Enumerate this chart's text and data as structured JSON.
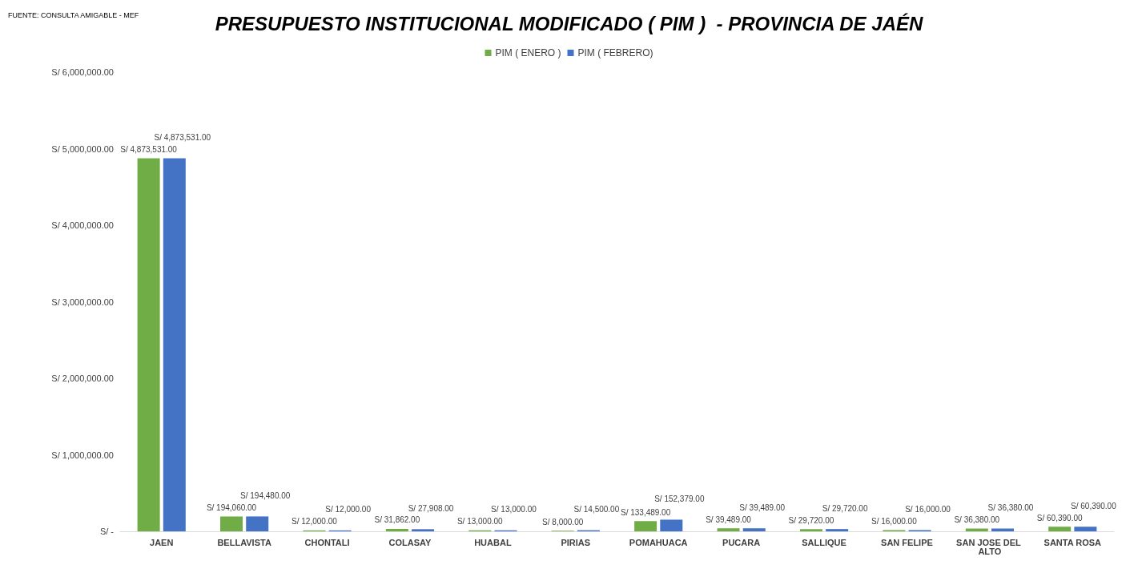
{
  "chart_data": {
    "type": "bar",
    "title": "PRESUPUESTO INSTITUCIONAL MODIFICADO ( PIM )  - PROVINCIA DE JAÉN",
    "annotations": [
      "FUENTE: CONSULTA AMIGABLE - MEF"
    ],
    "categories": [
      "JAEN",
      "BELLAVISTA",
      "CHONTALI",
      "COLASAY",
      "HUABAL",
      "PIRIAS",
      "POMAHUACA",
      "PUCARA",
      "SALLIQUE",
      "SAN FELIPE",
      "SAN JOSE DEL ALTO",
      "SANTA ROSA"
    ],
    "series": [
      {
        "name": "PIM ( ENERO )",
        "color": "#70ad47",
        "values": [
          4873531,
          194060,
          12000,
          31862,
          13000,
          8000,
          133489,
          39489,
          29720,
          16000,
          36380,
          60390
        ],
        "value_labels": [
          "S/ 4,873,531.00",
          "S/ 194,060.00",
          "S/ 12,000.00",
          "S/ 31,862.00",
          "S/ 13,000.00",
          "S/ 8,000.00",
          "S/ 133,489.00",
          "S/ 39,489.00",
          "S/ 29,720.00",
          "S/ 16,000.00",
          "S/ 36,380.00",
          "S/ 60,390.00"
        ]
      },
      {
        "name": "PIM ( FEBRERO)",
        "color": "#4472c4",
        "values": [
          4873531,
          194480,
          12000,
          27908,
          13000,
          14500,
          152379,
          39489,
          29720,
          16000,
          36380,
          60390
        ],
        "value_labels": [
          "S/ 4,873,531.00",
          "S/ 194,480.00",
          "S/ 12,000.00",
          "S/ 27,908.00",
          "S/ 13,000.00",
          "S/ 14,500.00",
          "S/ 152,379.00",
          "S/ 39,489.00",
          "S/ 29,720.00",
          "S/ 16,000.00",
          "S/ 36,380.00",
          "S/ 60,390.00"
        ]
      }
    ],
    "ylim": [
      0,
      6000000
    ],
    "yticks": [
      {
        "value": 0,
        "label": "S/ -"
      },
      {
        "value": 1000000,
        "label": "S/ 1,000,000.00"
      },
      {
        "value": 2000000,
        "label": "S/ 2,000,000.00"
      },
      {
        "value": 3000000,
        "label": "S/ 3,000,000.00"
      },
      {
        "value": 4000000,
        "label": "S/ 4,000,000.00"
      },
      {
        "value": 5000000,
        "label": "S/ 5,000,000.00"
      },
      {
        "value": 6000000,
        "label": "S/ 6,000,000.00"
      }
    ],
    "grid": false,
    "legend": "top"
  }
}
